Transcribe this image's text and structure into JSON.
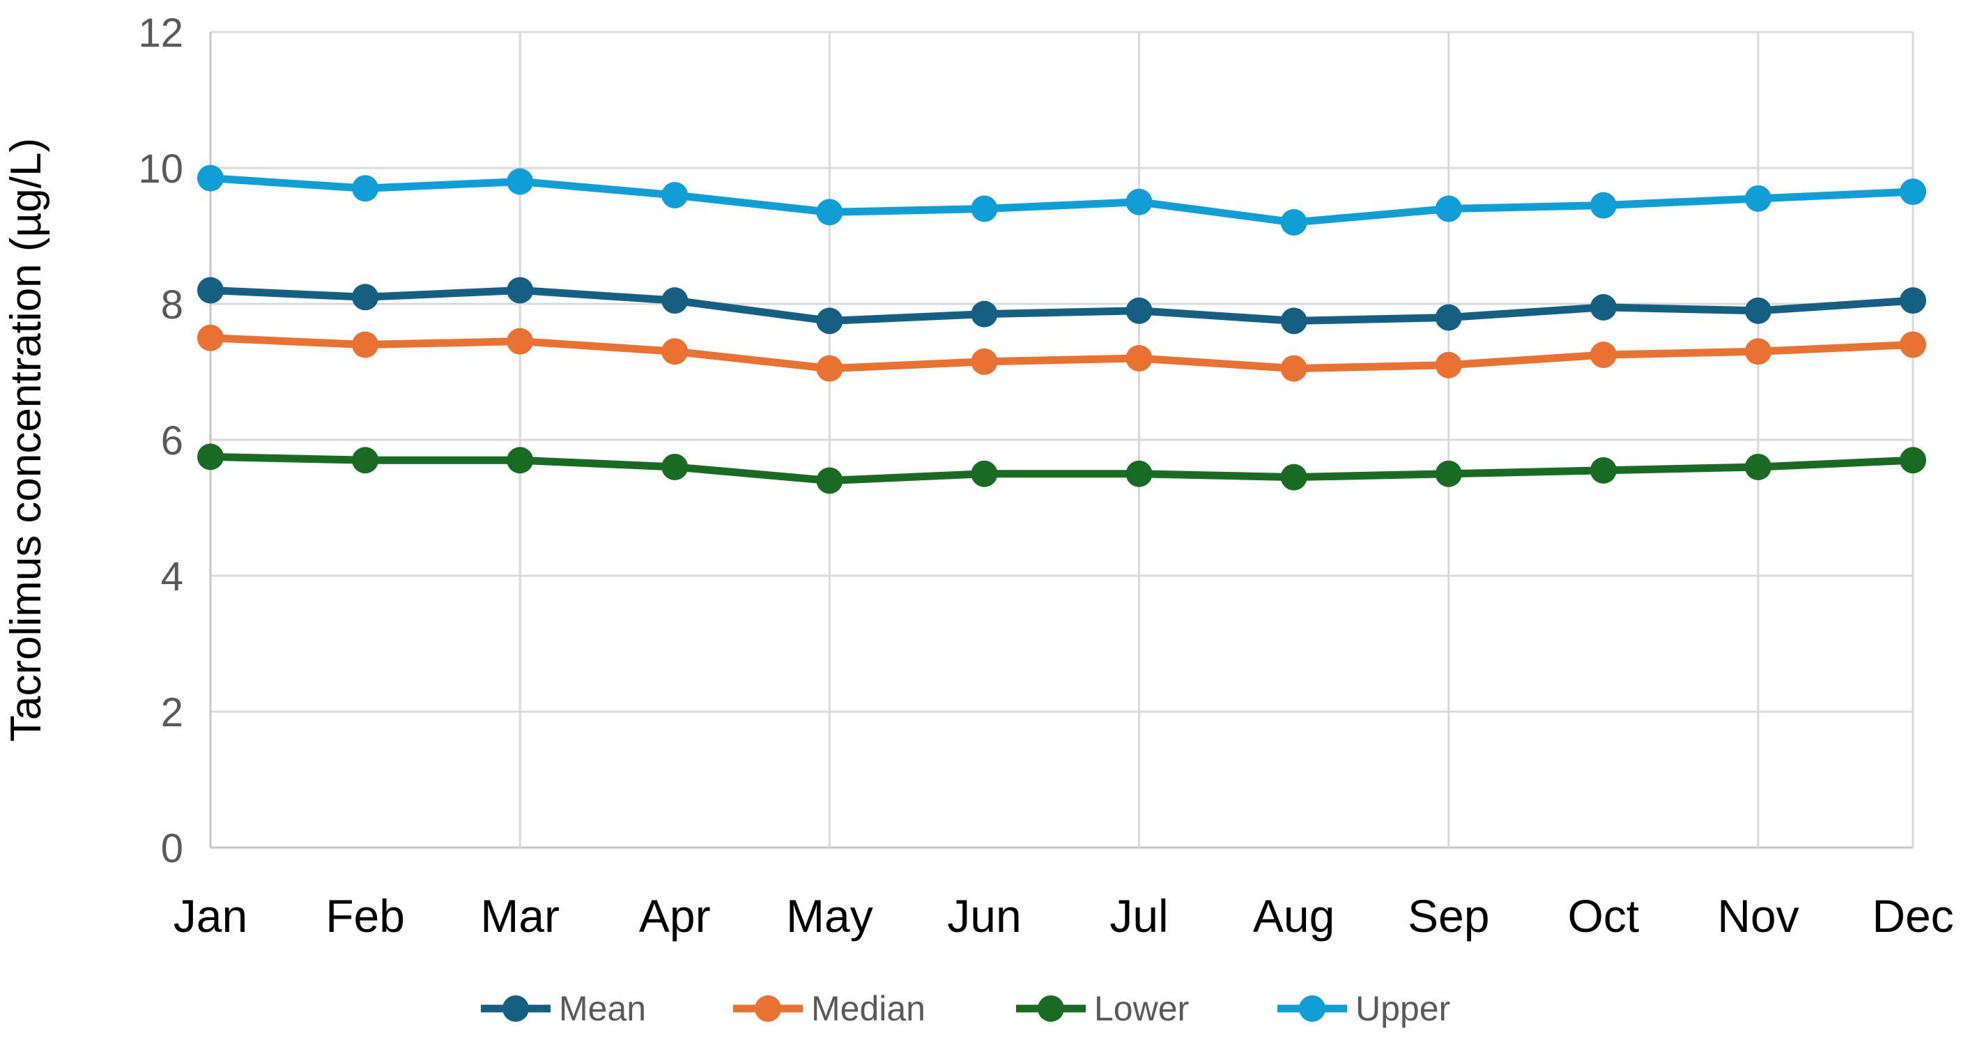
{
  "chart_data": {
    "type": "line",
    "title": "",
    "xlabel": "",
    "ylabel": "Tacrolimus concentration (µg/L)",
    "categories": [
      "Jan",
      "Feb",
      "Mar",
      "Apr",
      "May",
      "Jun",
      "Jul",
      "Aug",
      "Sep",
      "Oct",
      "Nov",
      "Dec"
    ],
    "series": [
      {
        "name": "Mean",
        "color": "#156082",
        "values": [
          8.2,
          8.1,
          8.2,
          8.05,
          7.75,
          7.85,
          7.9,
          7.75,
          7.8,
          7.95,
          7.9,
          8.05
        ]
      },
      {
        "name": "Median",
        "color": "#E97132",
        "values": [
          7.5,
          7.4,
          7.45,
          7.3,
          7.05,
          7.15,
          7.2,
          7.05,
          7.1,
          7.25,
          7.3,
          7.4
        ]
      },
      {
        "name": "Lower",
        "color": "#196B24",
        "values": [
          5.75,
          5.7,
          5.7,
          5.6,
          5.4,
          5.5,
          5.5,
          5.45,
          5.5,
          5.55,
          5.6,
          5.7
        ]
      },
      {
        "name": "Upper",
        "color": "#0F9ED5",
        "values": [
          9.85,
          9.7,
          9.8,
          9.6,
          9.35,
          9.4,
          9.5,
          9.2,
          9.4,
          9.45,
          9.55,
          9.65
        ]
      }
    ],
    "ylim": [
      0,
      12
    ],
    "yticks": [
      0,
      2,
      4,
      6,
      8,
      10,
      12
    ],
    "ytick_labels": [
      "0",
      "2",
      "4",
      "6",
      "8",
      "10",
      "12"
    ],
    "grid": true,
    "vertical_gridline_months": [
      "Mar",
      "May",
      "Jul",
      "Sep",
      "Nov"
    ],
    "legend_position": "bottom",
    "legend": [
      "Mean",
      "Median",
      "Lower",
      "Upper"
    ]
  },
  "style_colors": {
    "gridline": "#D9D9D9",
    "axis_line": "#C6C6C6",
    "ytick_label": "#595959",
    "month_label": "#000000",
    "yaxis_title": "#000000",
    "legend_label": "#595959",
    "background": "#FFFFFF"
  }
}
